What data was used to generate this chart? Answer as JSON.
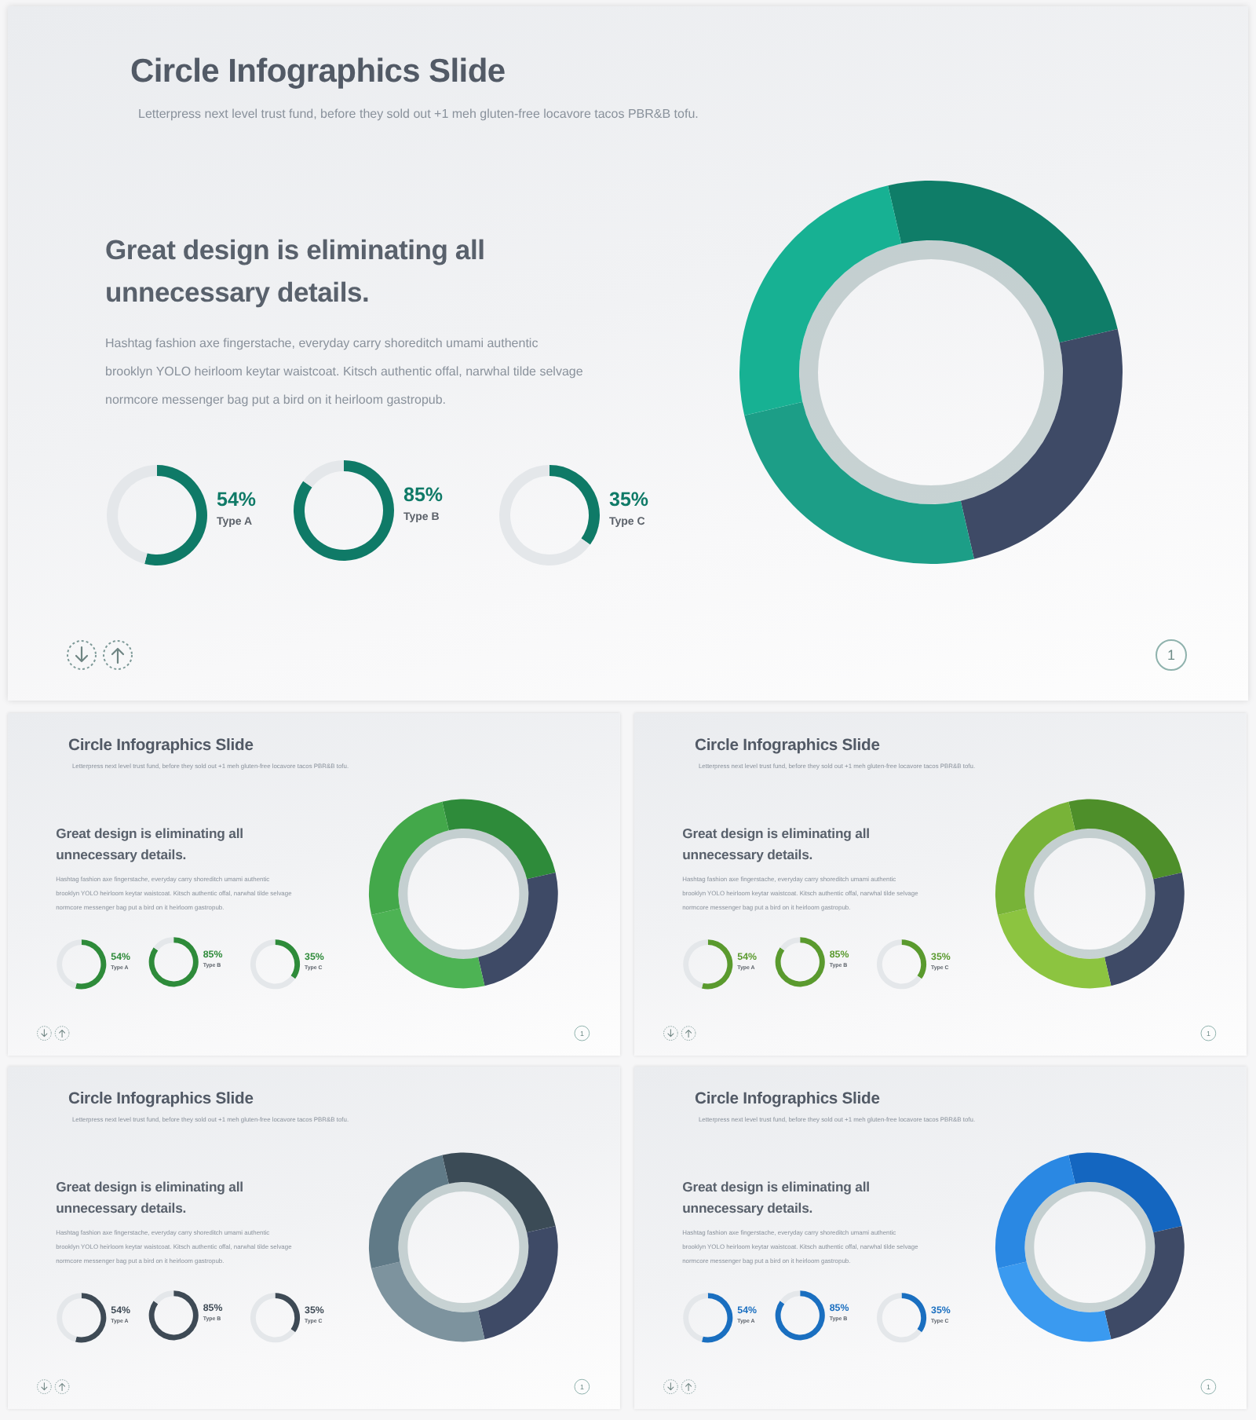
{
  "chart_data": [
    {
      "type": "other",
      "title": "Circle Infographics Slide",
      "subtitle": "Letterpress next level trust fund, before they sold out +1 meh gluten-free locavore tacos PBR&B tofu.",
      "annotations": [
        "Great design is eliminating all unnecessary details.",
        "Hashtag fashion axe fingerstache, everyday carry shoreditch umami authentic brooklyn YOLO heirloom keytar waistcoat. Kitsch authentic offal, narwhal tilde selvage normcore messenger bag put a bird on it heirloom gastropub.",
        "1"
      ]
    },
    {
      "type": "donut",
      "categories": [
        null,
        null,
        null,
        null
      ],
      "values": [
        25,
        25,
        25,
        25
      ],
      "colors": [
        "#0f7d68",
        "#3e4a66",
        "#1c9e87",
        "#17b193"
      ]
    },
    {
      "type": "donut",
      "categories": [
        "Type A",
        null
      ],
      "values": [
        54,
        46
      ],
      "colors": [
        "#0f7a67",
        "#e4e7ea"
      ],
      "value_labels": [
        "54%",
        null
      ]
    },
    {
      "type": "donut",
      "categories": [
        "Type B",
        null
      ],
      "values": [
        85,
        15
      ],
      "colors": [
        "#0f7a67",
        "#e4e7ea"
      ],
      "value_labels": [
        "85%",
        null
      ]
    },
    {
      "type": "donut",
      "categories": [
        "Type C",
        null
      ],
      "values": [
        35,
        65
      ],
      "colors": [
        "#0f7a67",
        "#e4e7ea"
      ],
      "value_labels": [
        "35%",
        null
      ]
    },
    {
      "type": "other",
      "title": "Circle Infographics Slide",
      "subtitle": "Letterpress next level trust fund, before they sold out +1 meh gluten-free locavore tacos PBR&B tofu.",
      "annotations": [
        "Great design is eliminating all unnecessary details.",
        "Hashtag fashion axe fingerstache, everyday carry shoreditch umami authentic brooklyn YOLO heirloom keytar waistcoat. Kitsch authentic offal, narwhal tilde selvage normcore messenger bag put a bird on it heirloom gastropub.",
        "1"
      ]
    },
    {
      "type": "donut",
      "categories": [
        null,
        null,
        null,
        null
      ],
      "values": [
        25,
        25,
        25,
        25
      ],
      "colors": [
        "#2e8b3a",
        "#3e4a66",
        "#4db354",
        "#43a84a"
      ]
    },
    {
      "type": "donut",
      "categories": [
        "Type A",
        null
      ],
      "values": [
        54,
        46
      ],
      "colors": [
        "#2e8b3a",
        "#e4e7ea"
      ],
      "value_labels": [
        "54%",
        null
      ]
    },
    {
      "type": "donut",
      "categories": [
        "Type B",
        null
      ],
      "values": [
        85,
        15
      ],
      "colors": [
        "#2e8b3a",
        "#e4e7ea"
      ],
      "value_labels": [
        "85%",
        null
      ]
    },
    {
      "type": "donut",
      "categories": [
        "Type C",
        null
      ],
      "values": [
        35,
        65
      ],
      "colors": [
        "#2e8b3a",
        "#e4e7ea"
      ],
      "value_labels": [
        "35%",
        null
      ]
    },
    {
      "type": "other",
      "title": "Circle Infographics Slide",
      "subtitle": "Letterpress next level trust fund, before they sold out +1 meh gluten-free locavore tacos PBR&B tofu.",
      "annotations": [
        "Great design is eliminating all unnecessary details.",
        "Hashtag fashion axe fingerstache, everyday carry shoreditch umami authentic brooklyn YOLO heirloom keytar waistcoat. Kitsch authentic offal, narwhal tilde selvage normcore messenger bag put a bird on it heirloom gastropub.",
        "1"
      ]
    },
    {
      "type": "donut",
      "categories": [
        null,
        null,
        null,
        null
      ],
      "values": [
        25,
        25,
        25,
        25
      ],
      "colors": [
        "#4e8f2a",
        "#3e4a66",
        "#8cc440",
        "#78b338"
      ]
    },
    {
      "type": "donut",
      "categories": [
        "Type A",
        null
      ],
      "values": [
        54,
        46
      ],
      "colors": [
        "#5a9a2e",
        "#e4e7ea"
      ],
      "value_labels": [
        "54%",
        null
      ]
    },
    {
      "type": "donut",
      "categories": [
        "Type B",
        null
      ],
      "values": [
        85,
        15
      ],
      "colors": [
        "#5a9a2e",
        "#e4e7ea"
      ],
      "value_labels": [
        "85%",
        null
      ]
    },
    {
      "type": "donut",
      "categories": [
        "Type C",
        null
      ],
      "values": [
        35,
        65
      ],
      "colors": [
        "#5a9a2e",
        "#e4e7ea"
      ],
      "value_labels": [
        "35%",
        null
      ]
    },
    {
      "type": "other",
      "title": "Circle Infographics Slide",
      "subtitle": "Letterpress next level trust fund, before they sold out +1 meh gluten-free locavore tacos PBR&B tofu.",
      "annotations": [
        "Great design is eliminating all unnecessary details.",
        "Hashtag fashion axe fingerstache, everyday carry shoreditch umami authentic brooklyn YOLO heirloom keytar waistcoat. Kitsch authentic offal, narwhal tilde selvage normcore messenger bag put a bird on it heirloom gastropub.",
        "1"
      ]
    },
    {
      "type": "donut",
      "categories": [
        null,
        null,
        null,
        null
      ],
      "values": [
        25,
        25,
        25,
        25
      ],
      "colors": [
        "#3b4b56",
        "#3e4a66",
        "#7d939e",
        "#607a87"
      ]
    },
    {
      "type": "donut",
      "categories": [
        "Type A",
        null
      ],
      "values": [
        54,
        46
      ],
      "colors": [
        "#3e4a55",
        "#e4e7ea"
      ],
      "value_labels": [
        "54%",
        null
      ]
    },
    {
      "type": "donut",
      "categories": [
        "Type B",
        null
      ],
      "values": [
        85,
        15
      ],
      "colors": [
        "#3e4a55",
        "#e4e7ea"
      ],
      "value_labels": [
        "85%",
        null
      ]
    },
    {
      "type": "donut",
      "categories": [
        "Type C",
        null
      ],
      "values": [
        35,
        65
      ],
      "colors": [
        "#3e4a55",
        "#e4e7ea"
      ],
      "value_labels": [
        "35%",
        null
      ]
    },
    {
      "type": "other",
      "title": "Circle Infographics Slide",
      "subtitle": "Letterpress next level trust fund, before they sold out +1 meh gluten-free locavore tacos PBR&B tofu.",
      "annotations": [
        "Great design is eliminating all unnecessary details.",
        "Hashtag fashion axe fingerstache, everyday carry shoreditch umami authentic brooklyn YOLO heirloom keytar waistcoat. Kitsch authentic offal, narwhal tilde selvage normcore messenger bag put a bird on it heirloom gastropub.",
        "1"
      ]
    },
    {
      "type": "donut",
      "categories": [
        null,
        null,
        null,
        null
      ],
      "values": [
        25,
        25,
        25,
        25
      ],
      "colors": [
        "#1466c0",
        "#3e4a66",
        "#3a9af0",
        "#2a88e3"
      ]
    },
    {
      "type": "donut",
      "categories": [
        "Type A",
        null
      ],
      "values": [
        54,
        46
      ],
      "colors": [
        "#1a6fc0",
        "#e4e7ea"
      ],
      "value_labels": [
        "54%",
        null
      ]
    },
    {
      "type": "donut",
      "categories": [
        "Type B",
        null
      ],
      "values": [
        85,
        15
      ],
      "colors": [
        "#1a6fc0",
        "#e4e7ea"
      ],
      "value_labels": [
        "85%",
        null
      ]
    },
    {
      "type": "donut",
      "categories": [
        "Type C",
        null
      ],
      "values": [
        35,
        65
      ],
      "colors": [
        "#1a6fc0",
        "#e4e7ea"
      ],
      "value_labels": [
        "35%",
        null
      ]
    }
  ]
}
